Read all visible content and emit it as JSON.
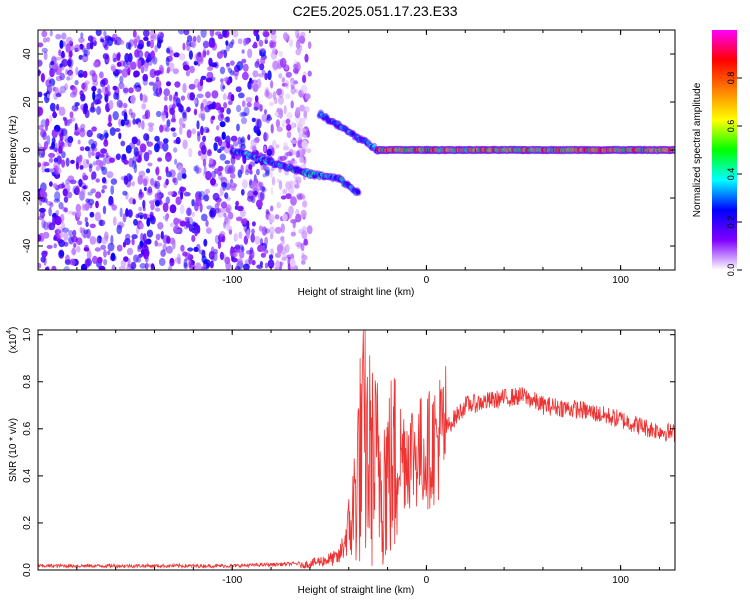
{
  "title": "C2E5.2025.051.17.23.E33",
  "chart_data": [
    {
      "type": "heatmap",
      "xlabel": "Height of straight line (km)",
      "ylabel": "Frequency (Hz)",
      "xlim": [
        -200,
        128
      ],
      "ylim": [
        -50,
        50
      ],
      "xticks": [
        -100,
        0,
        100
      ],
      "xtick_labels": [
        "-100",
        "0",
        "100"
      ],
      "yticks": [
        -40,
        -20,
        0,
        20,
        40
      ],
      "ytick_labels": [
        "-40",
        "-20",
        "0",
        "20",
        "40"
      ],
      "grid": false,
      "colorbar": {
        "label": "Normalized spectral amplitude",
        "range": [
          0.0,
          1.0
        ],
        "ticks": [
          0.0,
          0.2,
          0.4,
          0.6,
          0.8
        ],
        "tick_labels": [
          "0.0",
          "0.2",
          "0.4",
          "0.6",
          "0.8"
        ],
        "colormap": [
          "#ffffff",
          "#7f00ff",
          "#0000ff",
          "#00ffff",
          "#00ff00",
          "#ffff00",
          "#ff7f00",
          "#ff0000",
          "#ff00ff"
        ]
      },
      "features": [
        {
          "name": "noise",
          "x_range": [
            -200,
            -70
          ],
          "y_range": [
            -50,
            50
          ],
          "amplitude": 0.2
        },
        {
          "name": "upper branch",
          "points": [
            [
              -55,
              15
            ],
            [
              -45,
              10
            ],
            [
              -35,
              5
            ],
            [
              -25,
              0
            ]
          ],
          "amplitude": 0.4
        },
        {
          "name": "lower branch",
          "points": [
            [
              -100,
              0
            ],
            [
              -80,
              -5
            ],
            [
              -60,
              -10
            ],
            [
              -45,
              -12
            ],
            [
              -35,
              -18
            ]
          ],
          "amplitude": 0.45
        },
        {
          "name": "main echo",
          "points": [
            [
              -25,
              0
            ],
            [
              0,
              0
            ],
            [
              50,
              0
            ],
            [
              128,
              0
            ]
          ],
          "amplitude": 0.9
        }
      ]
    },
    {
      "type": "line",
      "xlabel": "Height of straight line (km)",
      "ylabel": "SNR (10 * v/v)",
      "y_multiplier": "(x10",
      "y_multiplier_exp": "4",
      "y_multiplier_close": ")",
      "xlim": [
        -200,
        128
      ],
      "ylim": [
        0,
        1.02
      ],
      "xticks": [
        -100,
        0,
        100
      ],
      "xtick_labels": [
        "-100",
        "0",
        "100"
      ],
      "yticks": [
        0,
        0.2,
        0.4,
        0.6,
        0.8,
        1.0
      ],
      "ytick_labels": [
        "0.0",
        "0.2",
        "0.4",
        "0.6",
        "0.8",
        "1.0"
      ],
      "grid": false,
      "color": "#ee3333",
      "envelope": {
        "x": [
          -200,
          -100,
          -65,
          -45,
          -38,
          -35,
          -32,
          -28,
          -22,
          -15,
          -8,
          0,
          10,
          20,
          40,
          50,
          60,
          80,
          100,
          115,
          128
        ],
        "y": [
          0.01,
          0.01,
          0.02,
          0.06,
          0.25,
          0.5,
          0.6,
          0.5,
          0.45,
          0.5,
          0.5,
          0.5,
          0.6,
          0.7,
          0.73,
          0.74,
          0.7,
          0.68,
          0.64,
          0.6,
          0.58
        ]
      }
    }
  ]
}
